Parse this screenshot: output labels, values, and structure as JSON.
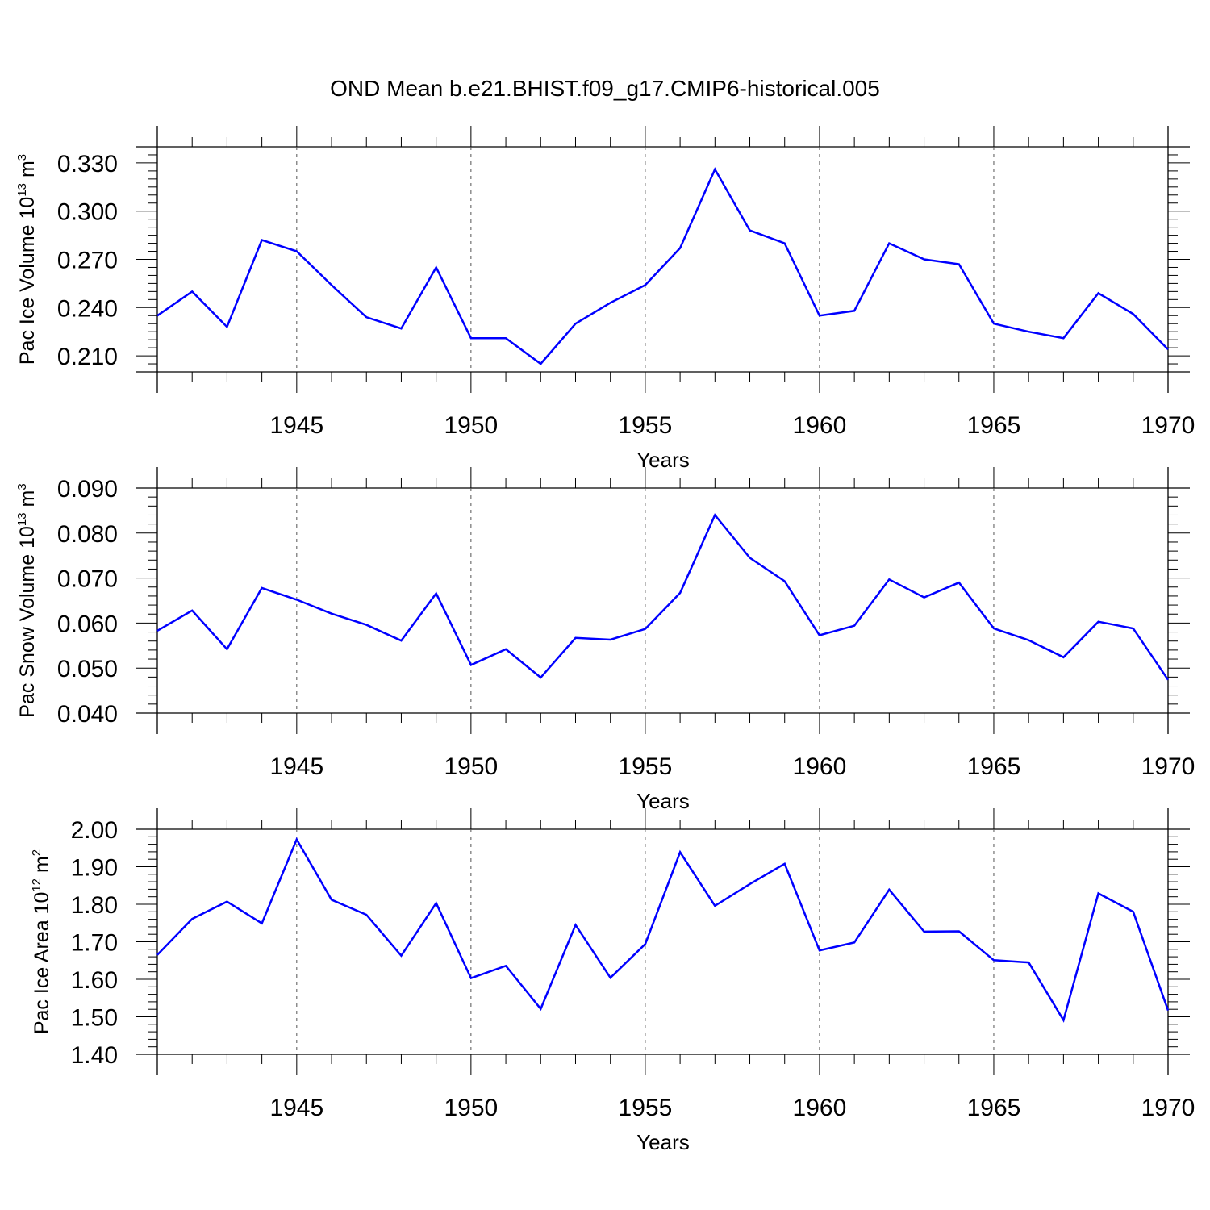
{
  "title": "OND Mean b.e21.BHIST.f09_g17.CMIP6-historical.005",
  "chart_data": [
    {
      "type": "line",
      "ylabel": "Pac Ice Volume 10",
      "ylabel_exponent": "13",
      "ylabel_unit": " m",
      "ylabel_unit_exponent": "3",
      "xlabel": "Years",
      "xlim": [
        1941,
        1970
      ],
      "ylim": [
        0.2,
        0.34
      ],
      "x_ticks": [
        "1945",
        "1950",
        "1955",
        "1960",
        "1965",
        "1970"
      ],
      "x_tick_values": [
        1945,
        1950,
        1955,
        1960,
        1965,
        1970
      ],
      "y_ticks": [
        "0.210",
        "0.240",
        "0.270",
        "0.300",
        "0.330"
      ],
      "y_tick_values": [
        0.21,
        0.24,
        0.27,
        0.3,
        0.33
      ],
      "line_color": "#0000ff",
      "series": [
        {
          "name": "Pac Ice Volume",
          "x": [
            1941,
            1942,
            1943,
            1944,
            1945,
            1946,
            1947,
            1948,
            1949,
            1950,
            1951,
            1952,
            1953,
            1954,
            1955,
            1956,
            1957,
            1958,
            1959,
            1960,
            1961,
            1962,
            1963,
            1964,
            1965,
            1966,
            1967,
            1968,
            1969,
            1970
          ],
          "values": [
            0.235,
            0.25,
            0.228,
            0.282,
            0.275,
            0.254,
            0.234,
            0.227,
            0.265,
            0.221,
            0.221,
            0.205,
            0.23,
            0.243,
            0.254,
            0.277,
            0.326,
            0.288,
            0.28,
            0.235,
            0.238,
            0.28,
            0.27,
            0.267,
            0.23,
            0.225,
            0.221,
            0.249,
            0.236,
            0.214
          ]
        }
      ]
    },
    {
      "type": "line",
      "ylabel": "Pac Snow Volume 10",
      "ylabel_exponent": "13",
      "ylabel_unit": " m",
      "ylabel_unit_exponent": "3",
      "xlabel": "Years",
      "xlim": [
        1941,
        1970
      ],
      "ylim": [
        0.04,
        0.09
      ],
      "x_ticks": [
        "1945",
        "1950",
        "1955",
        "1960",
        "1965",
        "1970"
      ],
      "x_tick_values": [
        1945,
        1950,
        1955,
        1960,
        1965,
        1970
      ],
      "y_ticks": [
        "0.040",
        "0.050",
        "0.060",
        "0.070",
        "0.080",
        "0.090"
      ],
      "y_tick_values": [
        0.04,
        0.05,
        0.06,
        0.07,
        0.08,
        0.09
      ],
      "line_color": "#0000ff",
      "series": [
        {
          "name": "Pac Snow Volume",
          "x": [
            1941,
            1942,
            1943,
            1944,
            1945,
            1946,
            1947,
            1948,
            1949,
            1950,
            1951,
            1952,
            1953,
            1954,
            1955,
            1956,
            1957,
            1958,
            1959,
            1960,
            1961,
            1962,
            1963,
            1964,
            1965,
            1966,
            1967,
            1968,
            1969,
            1970
          ],
          "values": [
            0.0583,
            0.0628,
            0.0542,
            0.0678,
            0.0652,
            0.0621,
            0.0596,
            0.0561,
            0.0666,
            0.0507,
            0.0542,
            0.0479,
            0.0567,
            0.0563,
            0.0587,
            0.0667,
            0.084,
            0.0745,
            0.0693,
            0.0573,
            0.0594,
            0.0697,
            0.0657,
            0.069,
            0.0588,
            0.0562,
            0.0524,
            0.0603,
            0.0588,
            0.0474
          ]
        }
      ]
    },
    {
      "type": "line",
      "ylabel": "Pac Ice Area 10",
      "ylabel_exponent": "12",
      "ylabel_unit": " m",
      "ylabel_unit_exponent": "2",
      "xlabel": "Years",
      "xlim": [
        1941,
        1970
      ],
      "ylim": [
        1.4,
        2.0
      ],
      "x_ticks": [
        "1945",
        "1950",
        "1955",
        "1960",
        "1965",
        "1970"
      ],
      "x_tick_values": [
        1945,
        1950,
        1955,
        1960,
        1965,
        1970
      ],
      "y_ticks": [
        "1.40",
        "1.50",
        "1.60",
        "1.70",
        "1.80",
        "1.90",
        "2.00"
      ],
      "y_tick_values": [
        1.4,
        1.5,
        1.6,
        1.7,
        1.8,
        1.9,
        2.0
      ],
      "line_color": "#0000ff",
      "series": [
        {
          "name": "Pac Ice Area",
          "x": [
            1941,
            1942,
            1943,
            1944,
            1945,
            1946,
            1947,
            1948,
            1949,
            1950,
            1951,
            1952,
            1953,
            1954,
            1955,
            1956,
            1957,
            1958,
            1959,
            1960,
            1961,
            1962,
            1963,
            1964,
            1965,
            1966,
            1967,
            1968,
            1969,
            1970
          ],
          "values": [
            1.665,
            1.761,
            1.807,
            1.749,
            1.973,
            1.812,
            1.772,
            1.663,
            1.803,
            1.603,
            1.636,
            1.521,
            1.745,
            1.604,
            1.694,
            1.939,
            1.796,
            1.854,
            1.908,
            1.677,
            1.698,
            1.839,
            1.727,
            1.728,
            1.651,
            1.645,
            1.491,
            1.829,
            1.78,
            1.517
          ]
        }
      ]
    }
  ]
}
